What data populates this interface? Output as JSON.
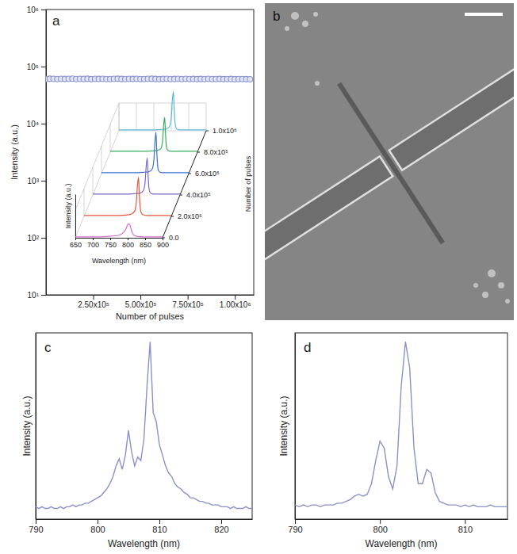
{
  "chart_data": [
    {
      "type": "scatter",
      "panel": "a",
      "xlabel": "Number of pulses",
      "ylabel": "Intensity (a.u.)",
      "color": "#8b97cc",
      "marker": "circle",
      "log": "y",
      "grid": false,
      "x": [
        0,
        20000,
        40000,
        60000,
        80000,
        100000,
        120000,
        140000,
        160000,
        180000,
        200000,
        220000,
        240000,
        260000,
        280000,
        300000,
        320000,
        340000,
        360000,
        380000,
        400000,
        420000,
        440000,
        460000,
        480000,
        500000,
        520000,
        540000,
        560000,
        580000,
        600000,
        620000,
        640000,
        660000,
        680000,
        700000,
        720000,
        740000,
        760000,
        780000,
        800000,
        820000,
        840000,
        860000,
        880000,
        900000,
        920000,
        940000,
        960000,
        980000,
        1000000,
        1020000,
        1040000,
        1060000,
        1080000
      ],
      "values": [
        60500,
        61200,
        60800,
        60300,
        61000,
        60700,
        60900,
        61300,
        60400,
        60800,
        60600,
        61100,
        60200,
        60900,
        60700,
        61000,
        60500,
        60300,
        60800,
        61200,
        60600,
        60400,
        60900,
        60700,
        61000,
        60300,
        60500,
        60800,
        61100,
        60600,
        60200,
        60700,
        60900,
        60400,
        60600,
        61000,
        60300,
        60800,
        60500,
        60700,
        60200,
        60600,
        60400,
        60900,
        60300,
        60500,
        60700,
        60200,
        60400,
        60600,
        60100,
        60300,
        60500,
        60200,
        60000
      ],
      "xlim": [
        0,
        1100000
      ],
      "xticks": [
        {
          "value": 250000,
          "label": "2.50x10⁵"
        },
        {
          "value": 500000,
          "label": "5.00x10⁵"
        },
        {
          "value": 750000,
          "label": "7.50x10⁵"
        },
        {
          "value": 1000000,
          "label": "1.00x10⁶"
        }
      ],
      "ylim": [
        10,
        1000000
      ],
      "yticks": [
        {
          "value": 10,
          "label": "10¹"
        },
        {
          "value": 100,
          "label": "10²"
        },
        {
          "value": 1000,
          "label": "10³"
        },
        {
          "value": 10000,
          "label": "10⁴"
        },
        {
          "value": 100000,
          "label": "10⁵"
        },
        {
          "value": 1000000,
          "label": "10⁶"
        }
      ]
    },
    {
      "type": "waterfall",
      "xlabel": "Wavelength (nm)",
      "ylabel": "Intensity (a.u.)",
      "zlabel": "Number of pulses",
      "x": [
        650,
        700,
        740,
        770,
        785,
        795,
        800,
        803,
        806,
        808,
        810,
        813,
        818,
        830,
        860,
        900
      ],
      "series": [
        {
          "depth": 0,
          "color": "#d36fd1",
          "values": [
            0.02,
            0.02,
            0.03,
            0.05,
            0.1,
            0.2,
            0.3,
            0.32,
            0.3,
            0.25,
            0.2,
            0.12,
            0.06,
            0.03,
            0.02,
            0.02
          ]
        },
        {
          "depth": 200000,
          "color": "#e8553a",
          "values": [
            0.02,
            0.02,
            0.02,
            0.03,
            0.05,
            0.12,
            0.35,
            0.7,
            0.9,
            0.6,
            0.3,
            0.1,
            0.04,
            0.02,
            0.02,
            0.02
          ]
        },
        {
          "depth": 400000,
          "color": "#7b68c8",
          "values": [
            0.02,
            0.02,
            0.02,
            0.03,
            0.04,
            0.1,
            0.3,
            0.65,
            0.85,
            0.55,
            0.25,
            0.08,
            0.03,
            0.02,
            0.02,
            0.02
          ]
        },
        {
          "depth": 600000,
          "color": "#3b6fd0",
          "values": [
            0.02,
            0.02,
            0.02,
            0.03,
            0.04,
            0.1,
            0.3,
            0.7,
            0.95,
            0.6,
            0.28,
            0.08,
            0.03,
            0.02,
            0.02,
            0.02
          ]
        },
        {
          "depth": 800000,
          "color": "#3cae5a",
          "values": [
            0.02,
            0.02,
            0.02,
            0.03,
            0.04,
            0.08,
            0.25,
            0.6,
            0.8,
            0.5,
            0.22,
            0.07,
            0.03,
            0.02,
            0.02,
            0.02
          ]
        },
        {
          "depth": 1000000,
          "color": "#5cb8d8",
          "values": [
            0.02,
            0.02,
            0.02,
            0.03,
            0.04,
            0.1,
            0.3,
            0.7,
            0.9,
            0.58,
            0.26,
            0.08,
            0.03,
            0.02,
            0.02,
            0.02
          ]
        }
      ],
      "xlim": [
        650,
        900
      ],
      "xticks": [
        650,
        700,
        750,
        800,
        850,
        900
      ],
      "ylim": [
        0,
        1
      ],
      "zlim": [
        0,
        1000000
      ],
      "zticks": [
        {
          "value": 0,
          "label": "0.0"
        },
        {
          "value": 200000,
          "label": "2.0x10⁵"
        },
        {
          "value": 400000,
          "label": "4.0x10⁵"
        },
        {
          "value": 600000,
          "label": "6.0x10⁵"
        },
        {
          "value": 800000,
          "label": "8.0x10⁵"
        },
        {
          "value": 1000000,
          "label": "1.0x10⁶"
        }
      ]
    },
    {
      "type": "image",
      "panel": "b"
    },
    {
      "type": "line",
      "panel": "c",
      "xlabel": "Wavelength (nm)",
      "ylabel": "Intensity (a.u.)",
      "color": "#8a92c8",
      "tick_labels": "x",
      "x": [
        790,
        790.5,
        791,
        791.5,
        792,
        792.5,
        793,
        793.5,
        794,
        794.5,
        795,
        795.5,
        796,
        796.5,
        797,
        797.5,
        798,
        798.5,
        799,
        799.5,
        800,
        800.5,
        801,
        801.5,
        802,
        802.5,
        803,
        803.5,
        804,
        804.5,
        805,
        805.5,
        806,
        806.5,
        807,
        807.5,
        808,
        808.5,
        809,
        809.5,
        810,
        810.5,
        811,
        811.5,
        812,
        812.5,
        813,
        813.5,
        814,
        814.5,
        815,
        815.5,
        816,
        816.5,
        817,
        817.5,
        818,
        818.5,
        819,
        819.5,
        820,
        820.5,
        821,
        821.5,
        822,
        822.5,
        823,
        823.5,
        824,
        824.5,
        825
      ],
      "values": [
        0.07,
        0.06,
        0.07,
        0.06,
        0.06,
        0.07,
        0.06,
        0.06,
        0.07,
        0.06,
        0.07,
        0.07,
        0.08,
        0.07,
        0.08,
        0.08,
        0.09,
        0.09,
        0.1,
        0.11,
        0.12,
        0.13,
        0.15,
        0.17,
        0.2,
        0.24,
        0.3,
        0.34,
        0.28,
        0.36,
        0.5,
        0.38,
        0.3,
        0.35,
        0.33,
        0.45,
        0.75,
        1.0,
        0.6,
        0.55,
        0.42,
        0.36,
        0.3,
        0.26,
        0.24,
        0.2,
        0.18,
        0.17,
        0.15,
        0.14,
        0.12,
        0.12,
        0.11,
        0.1,
        0.1,
        0.09,
        0.09,
        0.08,
        0.08,
        0.08,
        0.07,
        0.07,
        0.07,
        0.06,
        0.07,
        0.06,
        0.06,
        0.06,
        0.07,
        0.06,
        0.06
      ],
      "xlim": [
        790,
        825
      ],
      "xticks": [
        790,
        800,
        810,
        820
      ],
      "ylim": [
        0,
        1.05
      ]
    },
    {
      "type": "line",
      "panel": "d",
      "xlabel": "Wavelength (nm)",
      "ylabel": "Intensity (a.u.)",
      "color": "#8a92c8",
      "tick_labels": "x",
      "x": [
        790,
        790.5,
        791,
        791.5,
        792,
        792.5,
        793,
        793.5,
        794,
        794.5,
        795,
        795.5,
        796,
        796.5,
        797,
        797.5,
        798,
        798.5,
        799,
        799.5,
        800,
        800.5,
        801,
        801.5,
        802,
        802.5,
        803,
        803.5,
        804,
        804.5,
        805,
        805.5,
        806,
        806.5,
        807,
        807.5,
        808,
        808.5,
        809,
        809.5,
        810,
        810.5,
        811,
        811.5,
        812,
        812.5,
        813,
        813.5,
        814,
        814.5,
        815
      ],
      "values": [
        0.08,
        0.07,
        0.08,
        0.07,
        0.08,
        0.08,
        0.07,
        0.08,
        0.08,
        0.08,
        0.09,
        0.09,
        0.1,
        0.11,
        0.13,
        0.14,
        0.13,
        0.14,
        0.2,
        0.33,
        0.44,
        0.4,
        0.24,
        0.17,
        0.3,
        0.75,
        1.0,
        0.85,
        0.4,
        0.2,
        0.2,
        0.28,
        0.26,
        0.15,
        0.1,
        0.09,
        0.08,
        0.08,
        0.08,
        0.07,
        0.08,
        0.07,
        0.08,
        0.07,
        0.07,
        0.07,
        0.08,
        0.07,
        0.07,
        0.07,
        0.07
      ],
      "xlim": [
        790,
        815
      ],
      "xticks": [
        790,
        800,
        810
      ],
      "ylim": [
        0,
        1.05
      ]
    }
  ]
}
